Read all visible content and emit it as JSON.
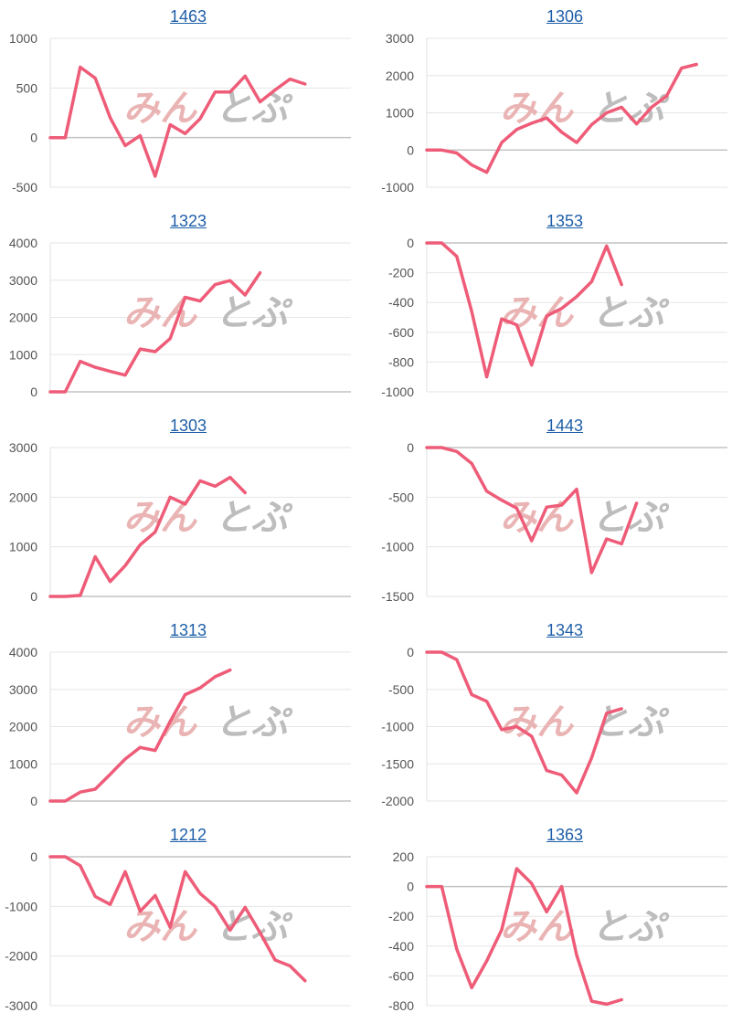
{
  "colors": {
    "line": "#ee5c78",
    "link": "#1f5fa8"
  },
  "watermark": {
    "left": "みん",
    "right": "とぷ",
    "name": "minkabu-watermark"
  },
  "chart_data": [
    {
      "type": "line",
      "title": "1463",
      "ylim": [
        -500,
        1000
      ],
      "yticks": [
        "-500",
        "0",
        "500",
        "1000"
      ],
      "ytick_values": [
        -500,
        0,
        500,
        1000
      ],
      "y": [
        0,
        0,
        710,
        600,
        200,
        -80,
        20,
        -390,
        130,
        40,
        190,
        460,
        460,
        620,
        360,
        480,
        590,
        540
      ]
    },
    {
      "type": "line",
      "title": "1306",
      "ylim": [
        -1000,
        3000
      ],
      "yticks": [
        "-1000",
        "0",
        "1000",
        "2000",
        "3000"
      ],
      "ytick_values": [
        -1000,
        0,
        1000,
        2000,
        3000
      ],
      "y": [
        0,
        0,
        -80,
        -400,
        -600,
        200,
        550,
        720,
        860,
        480,
        200,
        680,
        1000,
        1150,
        700,
        1150,
        1450,
        2200,
        2300
      ]
    },
    {
      "type": "line",
      "title": "1323",
      "ylim": [
        0,
        4000
      ],
      "yticks": [
        "0",
        "1000",
        "2000",
        "3000",
        "4000"
      ],
      "ytick_values": [
        0,
        1000,
        2000,
        3000,
        4000
      ],
      "y": [
        0,
        0,
        820,
        660,
        550,
        450,
        1150,
        1080,
        1430,
        2540,
        2440,
        2880,
        2990,
        2600,
        3200
      ]
    },
    {
      "type": "line",
      "title": "1353",
      "ylim": [
        -1000,
        0
      ],
      "yticks": [
        "0",
        "-200",
        "-400",
        "-600",
        "-800",
        "-1000"
      ],
      "ytick_values": [
        0,
        -200,
        -400,
        -600,
        -800,
        -1000
      ],
      "y": [
        0,
        0,
        -90,
        -460,
        -900,
        -510,
        -550,
        -820,
        -490,
        -440,
        -360,
        -260,
        -20,
        -280
      ]
    },
    {
      "type": "line",
      "title": "1303",
      "ylim": [
        0,
        3000
      ],
      "yticks": [
        "0",
        "1000",
        "2000",
        "3000"
      ],
      "ytick_values": [
        0,
        1000,
        2000,
        3000
      ],
      "y": [
        0,
        0,
        20,
        800,
        300,
        620,
        1040,
        1300,
        2000,
        1860,
        2330,
        2220,
        2400,
        2090
      ]
    },
    {
      "type": "line",
      "title": "1443",
      "ylim": [
        -1500,
        0
      ],
      "yticks": [
        "0",
        "-500",
        "-1000",
        "-1500"
      ],
      "ytick_values": [
        0,
        -500,
        -1000,
        -1500
      ],
      "y": [
        0,
        0,
        -40,
        -160,
        -440,
        -530,
        -610,
        -940,
        -600,
        -580,
        -420,
        -1260,
        -920,
        -970,
        -560
      ]
    },
    {
      "type": "line",
      "title": "1313",
      "ylim": [
        0,
        4000
      ],
      "yticks": [
        "0",
        "1000",
        "2000",
        "3000",
        "4000"
      ],
      "ytick_values": [
        0,
        1000,
        2000,
        3000,
        4000
      ],
      "y": [
        0,
        0,
        240,
        320,
        720,
        1130,
        1440,
        1360,
        2140,
        2860,
        3040,
        3340,
        3520
      ]
    },
    {
      "type": "line",
      "title": "1343",
      "ylim": [
        -2000,
        0
      ],
      "yticks": [
        "0",
        "-500",
        "-1000",
        "-1500",
        "-2000"
      ],
      "ytick_values": [
        0,
        -500,
        -1000,
        -1500,
        -2000
      ],
      "y": [
        0,
        0,
        -100,
        -570,
        -660,
        -1040,
        -1000,
        -1130,
        -1590,
        -1650,
        -1890,
        -1420,
        -820,
        -760
      ]
    },
    {
      "type": "line",
      "title": "1212",
      "ylim": [
        -3000,
        0
      ],
      "yticks": [
        "0",
        "-1000",
        "-2000",
        "-3000"
      ],
      "ytick_values": [
        0,
        -1000,
        -2000,
        -3000
      ],
      "y": [
        0,
        0,
        -180,
        -800,
        -960,
        -300,
        -1100,
        -780,
        -1420,
        -300,
        -740,
        -1000,
        -1480,
        -1020,
        -1530,
        -2080,
        -2200,
        -2500
      ]
    },
    {
      "type": "line",
      "title": "1363",
      "ylim": [
        -800,
        200
      ],
      "yticks": [
        "200",
        "0",
        "-200",
        "-400",
        "-600",
        "-800"
      ],
      "ytick_values": [
        200,
        0,
        -200,
        -400,
        -600,
        -800
      ],
      "y": [
        0,
        0,
        -420,
        -680,
        -500,
        -290,
        120,
        20,
        -170,
        0,
        -460,
        -770,
        -790,
        -760
      ]
    }
  ]
}
